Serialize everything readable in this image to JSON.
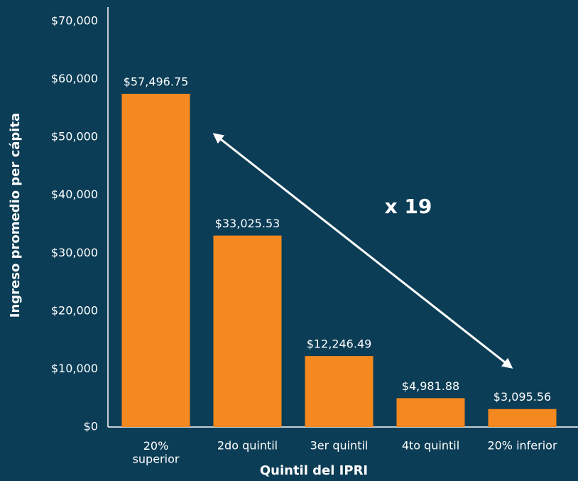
{
  "chart_data": {
    "type": "bar",
    "categories": [
      "20%\nsuperior",
      "2do quintil",
      "3er quintil",
      "4to quintil",
      "20% inferior"
    ],
    "values": [
      57496.75,
      33025.53,
      12246.49,
      4981.88,
      3095.56
    ],
    "value_labels": [
      "$57,496.75",
      "$33,025.53",
      "$12,246.49",
      "$4,981.88",
      "$3,095.56"
    ],
    "color": "#f5891f",
    "ylim": [
      0,
      70000
    ],
    "yticks": [
      {
        "value": 0,
        "label": "$0"
      },
      {
        "value": 10000,
        "label": "$10,000"
      },
      {
        "value": 20000,
        "label": "$20,000"
      },
      {
        "value": 30000,
        "label": "$30,000"
      },
      {
        "value": 40000,
        "label": "$40,000"
      },
      {
        "value": 50000,
        "label": "$50,000"
      },
      {
        "value": 60000,
        "label": "$60,000"
      },
      {
        "value": 70000,
        "label": "$70,000"
      }
    ],
    "y_label": "Ingreso promedio per cápita",
    "x_label": "Quintil del IPRI",
    "annotation": "x 19",
    "grid": false
  }
}
